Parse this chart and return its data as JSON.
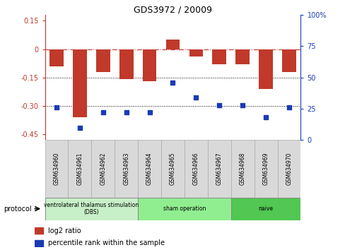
{
  "title": "GDS3972 / 20009",
  "samples": [
    "GSM634960",
    "GSM634961",
    "GSM634962",
    "GSM634963",
    "GSM634964",
    "GSM634965",
    "GSM634966",
    "GSM634967",
    "GSM634968",
    "GSM634969",
    "GSM634970"
  ],
  "log2_ratio": [
    -0.09,
    -0.36,
    -0.12,
    -0.16,
    -0.17,
    0.05,
    -0.04,
    -0.08,
    -0.08,
    -0.21,
    -0.12
  ],
  "percentile_rank": [
    26,
    10,
    22,
    22,
    22,
    46,
    34,
    28,
    28,
    18,
    26
  ],
  "bar_color": "#c0392b",
  "dot_color": "#1a3ab5",
  "ylim_left": [
    -0.48,
    0.18
  ],
  "ylim_right": [
    0,
    100
  ],
  "yticks_left": [
    0.15,
    0.0,
    -0.15,
    -0.3,
    -0.45
  ],
  "yticks_right": [
    100,
    75,
    50,
    25,
    0
  ],
  "dotted_lines": [
    -0.15,
    -0.3
  ],
  "groups": [
    {
      "label": "ventrolateral thalamus stimulation\n(DBS)",
      "start": 0,
      "end": 3,
      "color": "#c8f0c8"
    },
    {
      "label": "sham operation",
      "start": 4,
      "end": 7,
      "color": "#90ee90"
    },
    {
      "label": "naive",
      "start": 8,
      "end": 10,
      "color": "#52c752"
    }
  ],
  "protocol_label": "protocol",
  "legend_bar_label": "log2 ratio",
  "legend_dot_label": "percentile rank within the sample",
  "sample_box_color": "#d9d9d9",
  "sample_box_edge": "#aaaaaa"
}
